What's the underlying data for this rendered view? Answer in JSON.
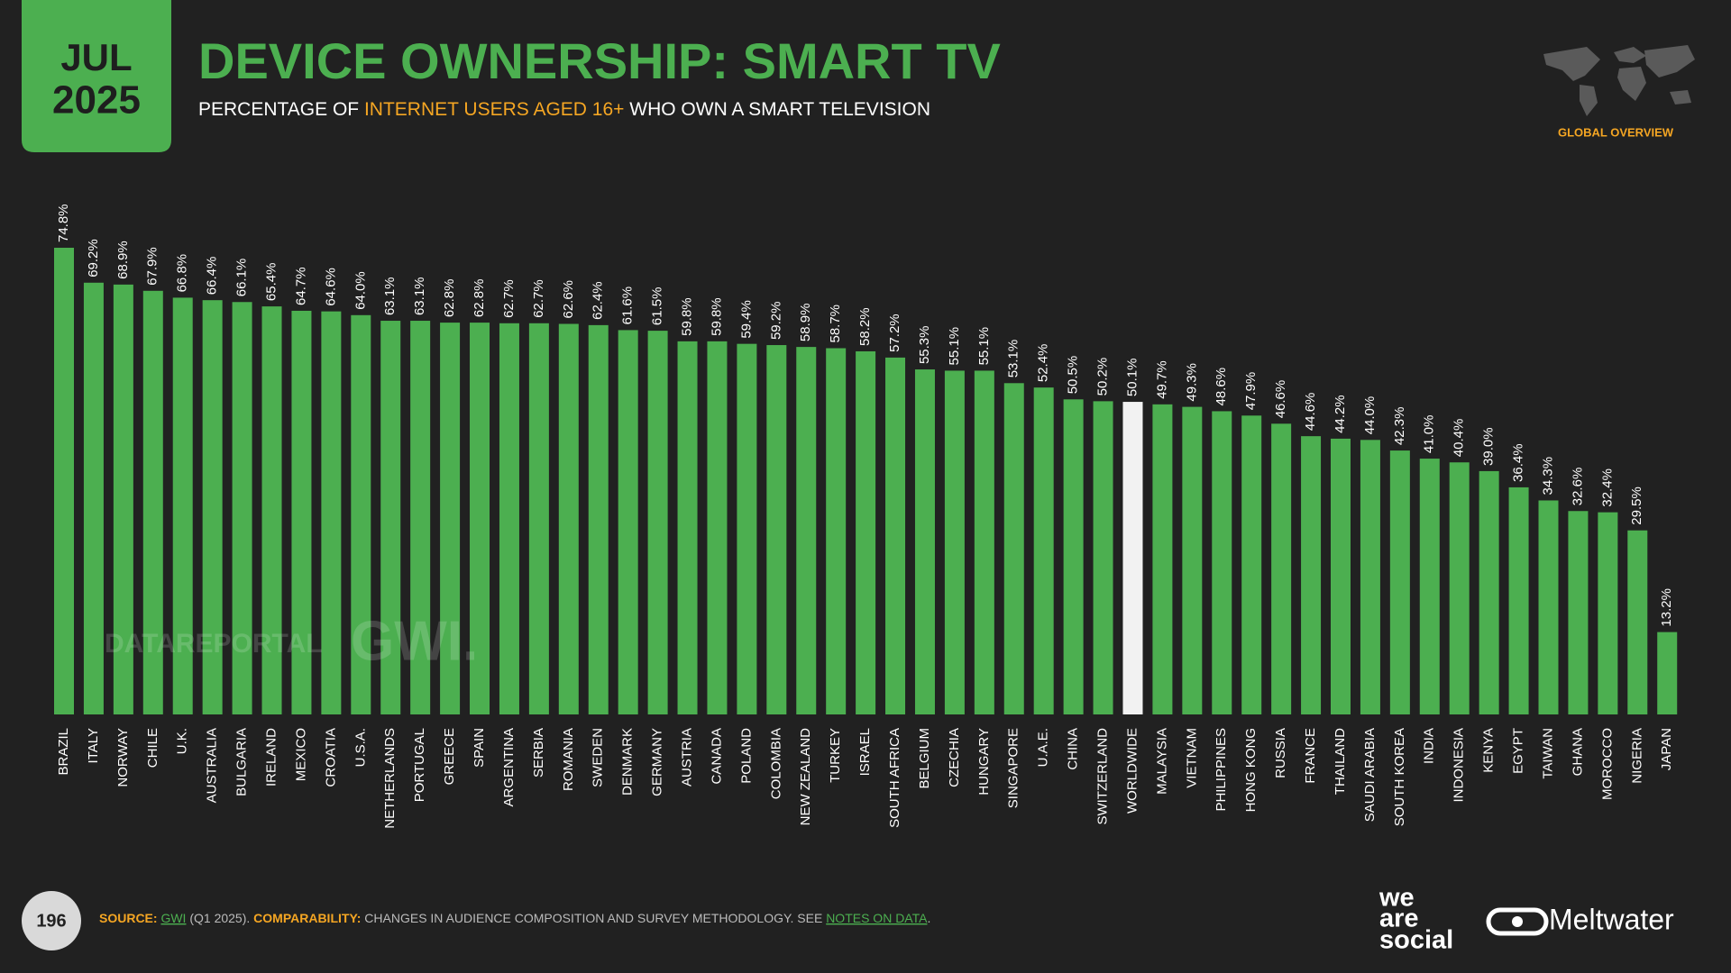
{
  "date": {
    "month": "JUL",
    "year": "2025"
  },
  "header": {
    "title": "DEVICE OWNERSHIP: SMART TV",
    "subtitle": [
      "PERCENTAGE OF ",
      "INTERNET USERS AGED 16+",
      " WHO OWN A SMART TELEVISION"
    ],
    "section": "GLOBAL OVERVIEW"
  },
  "watermarks": [
    "DATAREPORTAL",
    "GWI."
  ],
  "chart_data": {
    "type": "bar",
    "categories": [
      "BRAZIL",
      "ITALY",
      "NORWAY",
      "CHILE",
      "U.K.",
      "AUSTRALIA",
      "BULGARIA",
      "IRELAND",
      "MEXICO",
      "CROATIA",
      "U.S.A.",
      "NETHERLANDS",
      "PORTUGAL",
      "GREECE",
      "SPAIN",
      "ARGENTINA",
      "SERBIA",
      "ROMANIA",
      "SWEDEN",
      "DENMARK",
      "GERMANY",
      "AUSTRIA",
      "CANADA",
      "POLAND",
      "COLOMBIA",
      "NEW ZEALAND",
      "TURKEY",
      "ISRAEL",
      "SOUTH AFRICA",
      "BELGIUM",
      "CZECHIA",
      "HUNGARY",
      "SINGAPORE",
      "U.A.E.",
      "CHINA",
      "SWITZERLAND",
      "WORLDWIDE",
      "MALAYSIA",
      "VIETNAM",
      "PHILIPPINES",
      "HONG KONG",
      "RUSSIA",
      "FRANCE",
      "THAILAND",
      "SAUDI ARABIA",
      "SOUTH KOREA",
      "INDIA",
      "INDONESIA",
      "KENYA",
      "EGYPT",
      "TAIWAN",
      "GHANA",
      "MOROCCO",
      "NIGERIA",
      "JAPAN"
    ],
    "values": [
      74.8,
      69.2,
      68.9,
      67.9,
      66.8,
      66.4,
      66.1,
      65.4,
      64.7,
      64.6,
      64.0,
      63.1,
      63.1,
      62.8,
      62.8,
      62.7,
      62.7,
      62.6,
      62.4,
      61.6,
      61.5,
      59.8,
      59.8,
      59.4,
      59.2,
      58.9,
      58.7,
      58.2,
      57.2,
      55.3,
      55.1,
      55.1,
      53.1,
      52.4,
      50.5,
      50.2,
      50.1,
      49.7,
      49.3,
      48.6,
      47.9,
      46.6,
      44.6,
      44.2,
      44.0,
      42.3,
      41.0,
      40.4,
      39.0,
      36.4,
      34.3,
      32.6,
      32.4,
      29.5,
      13.2
    ],
    "value_labels": [
      "74.8%",
      "69.2%",
      "68.9%",
      "67.9%",
      "66.8%",
      "66.4%",
      "66.1%",
      "65.4%",
      "64.7%",
      "64.6%",
      "64.0%",
      "63.1%",
      "63.1%",
      "62.8%",
      "62.8%",
      "62.7%",
      "62.7%",
      "62.6%",
      "62.4%",
      "61.6%",
      "61.5%",
      "59.8%",
      "59.8%",
      "59.4%",
      "59.2%",
      "58.9%",
      "58.7%",
      "58.2%",
      "57.2%",
      "55.3%",
      "55.1%",
      "55.1%",
      "53.1%",
      "52.4%",
      "50.5%",
      "50.2%",
      "50.1%",
      "49.7%",
      "49.3%",
      "48.6%",
      "47.9%",
      "46.6%",
      "44.6%",
      "44.2%",
      "44.0%",
      "42.3%",
      "41.0%",
      "40.4%",
      "39.0%",
      "36.4%",
      "34.3%",
      "32.6%",
      "32.4%",
      "29.5%",
      "13.2%"
    ],
    "colors": [
      "#4caf50",
      "#4caf50",
      "#4caf50",
      "#4caf50",
      "#4caf50",
      "#4caf50",
      "#4caf50",
      "#4caf50",
      "#4caf50",
      "#4caf50",
      "#4caf50",
      "#4caf50",
      "#4caf50",
      "#4caf50",
      "#4caf50",
      "#4caf50",
      "#4caf50",
      "#4caf50",
      "#4caf50",
      "#4caf50",
      "#4caf50",
      "#4caf50",
      "#4caf50",
      "#4caf50",
      "#4caf50",
      "#4caf50",
      "#4caf50",
      "#4caf50",
      "#4caf50",
      "#4caf50",
      "#4caf50",
      "#4caf50",
      "#4caf50",
      "#4caf50",
      "#4caf50",
      "#4caf50",
      "#f2f2f2",
      "#4caf50",
      "#4caf50",
      "#4caf50",
      "#4caf50",
      "#4caf50",
      "#4caf50",
      "#4caf50",
      "#4caf50",
      "#4caf50",
      "#4caf50",
      "#4caf50",
      "#4caf50",
      "#4caf50",
      "#4caf50",
      "#4caf50",
      "#4caf50",
      "#4caf50",
      "#4caf50"
    ]
  },
  "footer": {
    "page": "196",
    "source_parts": [
      "SOURCE: ",
      "GWI",
      " (Q1 2025). ",
      "COMPARABILITY: ",
      "CHANGES IN AUDIENCE COMPOSITION AND SURVEY METHODOLOGY. SEE ",
      "NOTES ON DATA",
      "."
    ],
    "logo_lines": [
      "we",
      "are",
      "social"
    ],
    "logo_meltwater": "Meltwater"
  }
}
